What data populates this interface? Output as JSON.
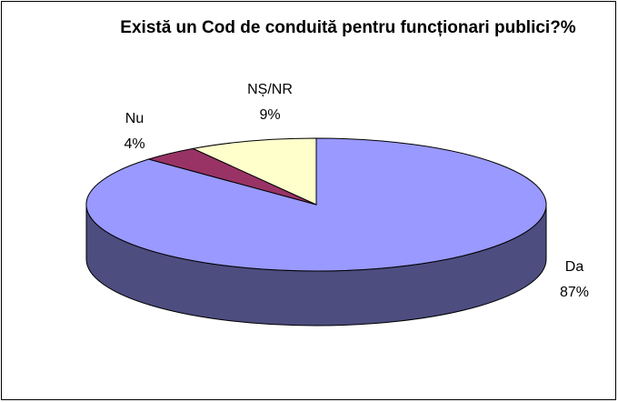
{
  "chart_data": {
    "type": "pie3d",
    "title": "Există un Cod de conduită pentru funcționari publici?%",
    "categories": [
      "Da",
      "Nu",
      "NȘ/NR"
    ],
    "values": [
      87,
      4,
      9
    ],
    "value_labels": [
      "87%",
      "4%",
      "9%"
    ],
    "colors": [
      "#9999ff",
      "#993366",
      "#ffffcc"
    ]
  }
}
